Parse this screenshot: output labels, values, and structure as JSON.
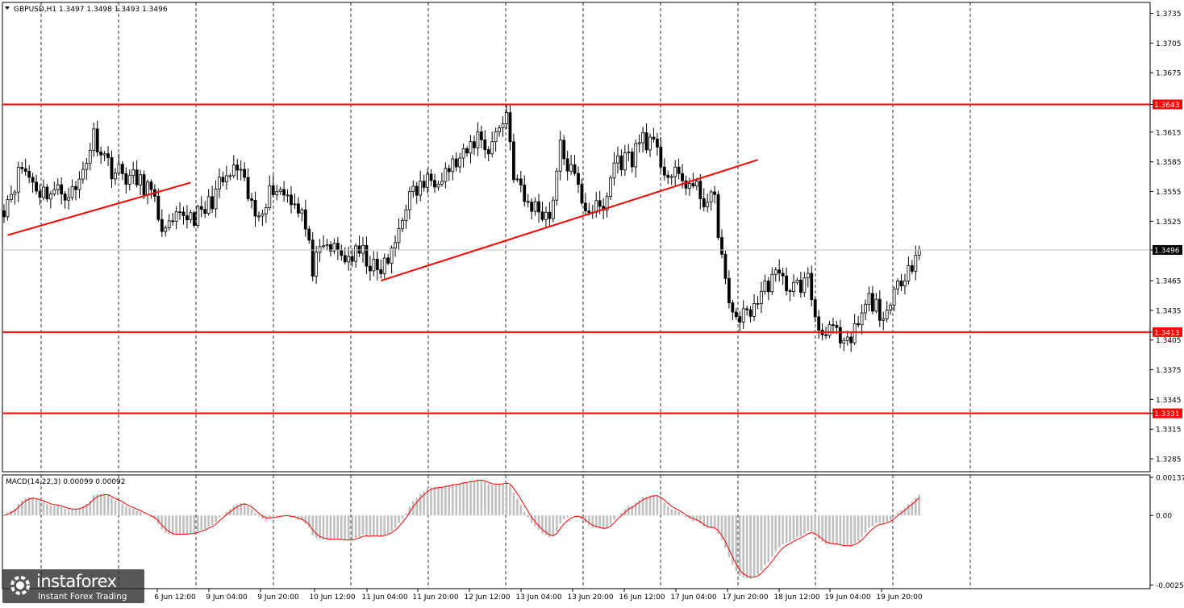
{
  "chart_data": [
    {
      "type": "candlestick",
      "title": "GBPUSD,H1",
      "ohlc_readout": "1.3497 1.3498 1.3493 1.3496",
      "ylim": [
        1.3272,
        1.3746
      ],
      "y_ticks": [
        "1.3735",
        "1.3705",
        "1.3675",
        "1.3643",
        "1.3615",
        "1.3585",
        "1.3555",
        "1.3525",
        "1.3496",
        "1.3465",
        "1.3435",
        "1.3413",
        "1.3405",
        "1.3375",
        "1.3345",
        "1.3331",
        "1.3315",
        "1.3285"
      ],
      "x_ticks": [
        "6 Jun 12:00",
        "9 Jun 04:00",
        "9 Jun 20:00",
        "10 Jun 12:00",
        "11 Jun 04:00",
        "11 Jun 20:00",
        "12 Jun 12:00",
        "13 Jun 04:00",
        "13 Jun 20:00",
        "16 Jun 12:00",
        "17 Jun 04:00",
        "17 Jun 20:00",
        "18 Jun 12:00",
        "19 Jun 04:00",
        "19 Jun 20:00"
      ],
      "grid": "vertical dashed",
      "current_price": "1.3496",
      "levels": [
        {
          "value": 1.3643,
          "label": "1.3643"
        },
        {
          "value": 1.3413,
          "label": "1.3413"
        },
        {
          "value": 1.3331,
          "label": "1.3331"
        }
      ],
      "trendlines": [
        {
          "from": {
            "bar": 1,
            "price": 1.3511
          },
          "to": {
            "bar": 52,
            "price": 1.3564
          }
        },
        {
          "from": {
            "bar": 105,
            "price": 1.3465
          },
          "to": {
            "bar": 210,
            "price": 1.3587
          }
        }
      ],
      "path_anchors": [
        [
          0,
          1.354
        ],
        [
          5,
          1.358
        ],
        [
          10,
          1.3555
        ],
        [
          20,
          1.3555
        ],
        [
          25,
          1.3612
        ],
        [
          30,
          1.3578
        ],
        [
          40,
          1.356
        ],
        [
          45,
          1.3512
        ],
        [
          50,
          1.3532
        ],
        [
          55,
          1.353
        ],
        [
          60,
          1.356
        ],
        [
          65,
          1.3578
        ],
        [
          70,
          1.353
        ],
        [
          75,
          1.356
        ],
        [
          80,
          1.355
        ],
        [
          83,
          1.3535
        ],
        [
          86,
          1.3478
        ],
        [
          90,
          1.35
        ],
        [
          95,
          1.3488
        ],
        [
          100,
          1.3492
        ],
        [
          104,
          1.3472
        ],
        [
          108,
          1.349
        ],
        [
          112,
          1.3545
        ],
        [
          116,
          1.356
        ],
        [
          122,
          1.3575
        ],
        [
          128,
          1.3588
        ],
        [
          132,
          1.3612
        ],
        [
          135,
          1.3598
        ],
        [
          140,
          1.3635
        ],
        [
          142,
          1.3575
        ],
        [
          145,
          1.3545
        ],
        [
          150,
          1.3535
        ],
        [
          152,
          1.353
        ],
        [
          155,
          1.3598
        ],
        [
          158,
          1.3575
        ],
        [
          162,
          1.354
        ],
        [
          167,
          1.3535
        ],
        [
          170,
          1.3585
        ],
        [
          175,
          1.359
        ],
        [
          178,
          1.3612
        ],
        [
          181,
          1.3598
        ],
        [
          185,
          1.3572
        ],
        [
          190,
          1.3565
        ],
        [
          196,
          1.3545
        ],
        [
          198,
          1.3545
        ],
        [
          200,
          1.349
        ],
        [
          202,
          1.3435
        ],
        [
          206,
          1.3428
        ],
        [
          210,
          1.3445
        ],
        [
          214,
          1.347
        ],
        [
          220,
          1.3458
        ],
        [
          224,
          1.3465
        ],
        [
          227,
          1.3415
        ],
        [
          230,
          1.342
        ],
        [
          234,
          1.3395
        ],
        [
          236,
          1.3405
        ],
        [
          241,
          1.3445
        ],
        [
          244,
          1.3435
        ],
        [
          246,
          1.3425
        ],
        [
          250,
          1.347
        ],
        [
          253,
          1.3485
        ],
        [
          255,
          1.3496
        ]
      ],
      "volatility": 0.0021,
      "bars": 256
    },
    {
      "type": "histogram+line",
      "title": "MACD(14,22,3) 0.00099 0.00092",
      "ylim": [
        -0.00264,
        0.00146
      ],
      "y_ticks": [
        "0.00137",
        "0.00",
        "-0.00251"
      ]
    }
  ],
  "watermark": {
    "brand": "instaforex",
    "tagline": "Instant Forex Trading"
  },
  "colors": {
    "level_line": "#ff0000",
    "trend_line": "#ff0000",
    "candle": "#000000",
    "price_line": "#c0c0c0",
    "histogram": "#c0c0c0",
    "signal_line": "#ff0000",
    "grid": "#000000"
  }
}
